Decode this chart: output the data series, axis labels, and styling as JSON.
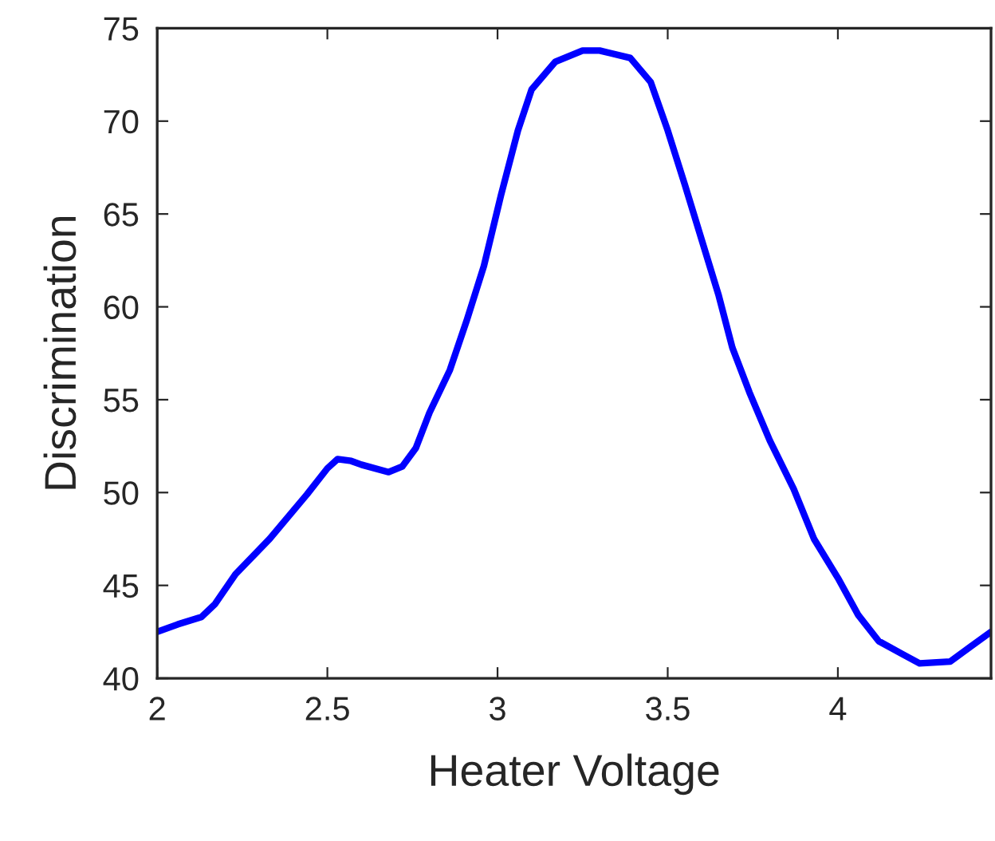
{
  "chart_data": {
    "type": "line",
    "xlabel": "Heater Voltage",
    "ylabel": "Discrimination",
    "x": [
      2.0,
      2.06,
      2.13,
      2.17,
      2.23,
      2.33,
      2.44,
      2.5,
      2.53,
      2.57,
      2.6,
      2.68,
      2.72,
      2.76,
      2.8,
      2.86,
      2.91,
      2.96,
      3.01,
      3.06,
      3.1,
      3.17,
      3.25,
      3.3,
      3.39,
      3.45,
      3.5,
      3.55,
      3.6,
      3.65,
      3.69,
      3.74,
      3.8,
      3.87,
      3.93,
      4.0,
      4.06,
      4.12,
      4.19,
      4.24,
      4.33,
      4.39,
      4.45
    ],
    "series": [
      {
        "color": "#0000ff",
        "values": [
          42.5,
          42.9,
          43.3,
          44.0,
          45.6,
          47.5,
          49.9,
          51.3,
          51.8,
          51.7,
          51.5,
          51.1,
          51.4,
          52.4,
          54.3,
          56.6,
          59.3,
          62.2,
          66.0,
          69.5,
          71.7,
          73.2,
          73.8,
          73.8,
          73.4,
          72.1,
          69.5,
          66.6,
          63.6,
          60.6,
          57.8,
          55.4,
          52.8,
          50.2,
          47.5,
          45.4,
          43.4,
          42.0,
          41.3,
          40.8,
          40.9,
          41.7,
          42.5
        ]
      }
    ],
    "xlim": [
      2,
      4.45
    ],
    "ylim": [
      40,
      75
    ],
    "xticks": [
      2,
      2.5,
      3,
      3.5,
      4
    ],
    "yticks": [
      40,
      45,
      50,
      55,
      60,
      65,
      70,
      75
    ],
    "grid": false,
    "marker": "none",
    "line_style": "solid"
  }
}
